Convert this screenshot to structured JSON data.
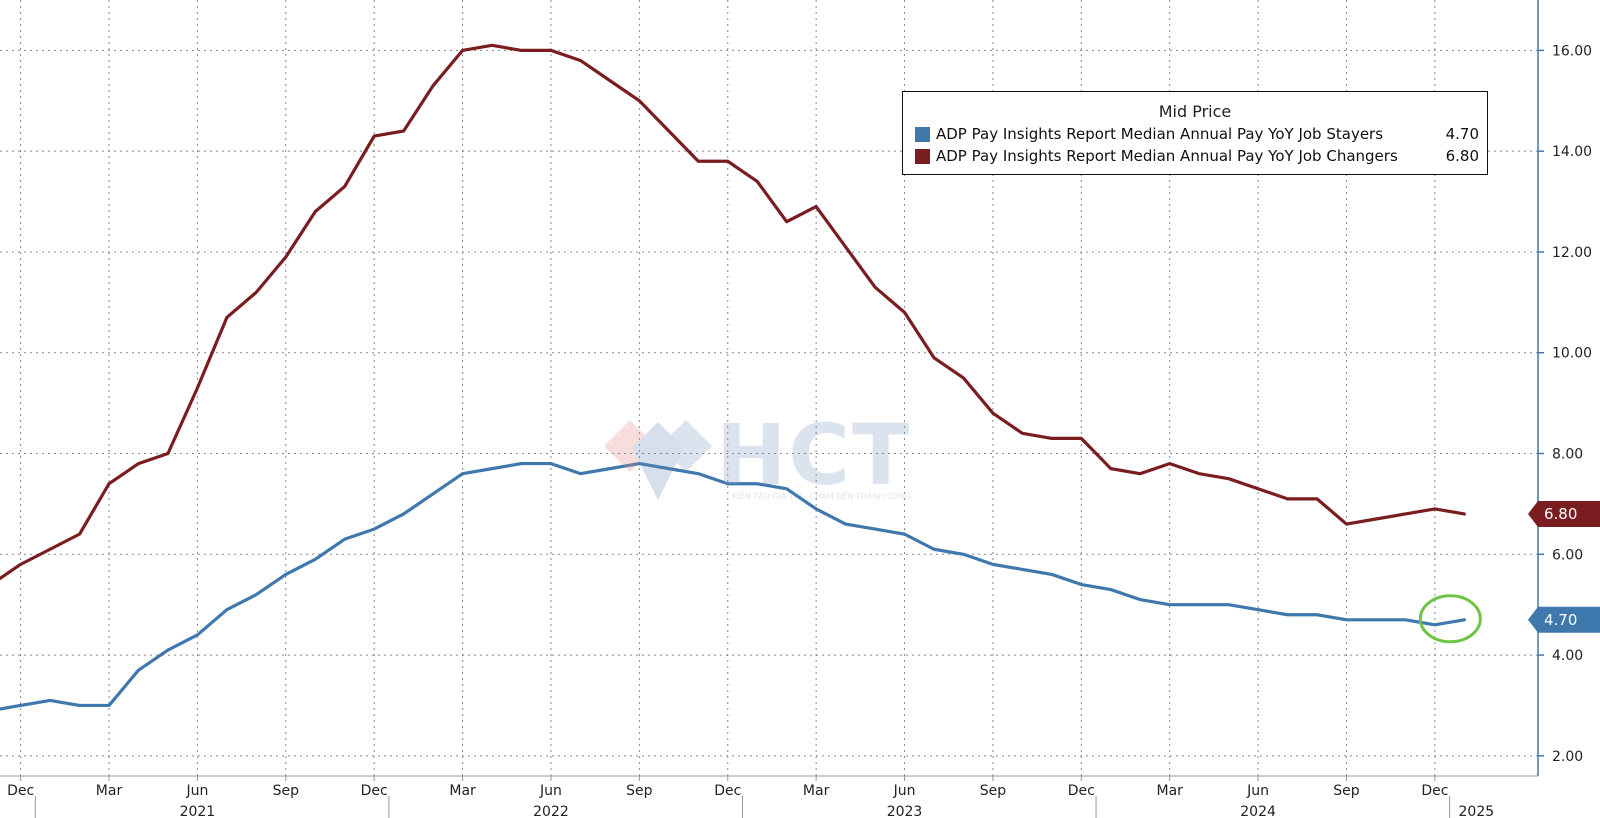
{
  "chart_data": {
    "type": "line",
    "legend_title": "Mid Price",
    "legend_position": "top-right",
    "grid": true,
    "y_axis": {
      "position": "right",
      "ylim": [
        1.6,
        17.0
      ],
      "ticks": [
        "2.00",
        "4.00",
        "6.00",
        "8.00",
        "10.00",
        "12.00",
        "14.00",
        "16.00"
      ],
      "tick_values": [
        2,
        4,
        6,
        8,
        10,
        12,
        14,
        16
      ]
    },
    "x_axis": {
      "xlim": [
        "2020-11",
        "2025-03"
      ],
      "month_labels": [
        {
          "date": "2020-12",
          "label": "Dec"
        },
        {
          "date": "2021-03",
          "label": "Mar"
        },
        {
          "date": "2021-06",
          "label": "Jun"
        },
        {
          "date": "2021-09",
          "label": "Sep"
        },
        {
          "date": "2021-12",
          "label": "Dec"
        },
        {
          "date": "2022-03",
          "label": "Mar"
        },
        {
          "date": "2022-06",
          "label": "Jun"
        },
        {
          "date": "2022-09",
          "label": "Sep"
        },
        {
          "date": "2022-12",
          "label": "Dec"
        },
        {
          "date": "2023-03",
          "label": "Mar"
        },
        {
          "date": "2023-06",
          "label": "Jun"
        },
        {
          "date": "2023-09",
          "label": "Sep"
        },
        {
          "date": "2023-12",
          "label": "Dec"
        },
        {
          "date": "2024-03",
          "label": "Mar"
        },
        {
          "date": "2024-06",
          "label": "Jun"
        },
        {
          "date": "2024-09",
          "label": "Sep"
        },
        {
          "date": "2024-12",
          "label": "Dec"
        }
      ],
      "year_labels": [
        {
          "date": "2021-06",
          "label": "2021"
        },
        {
          "date": "2022-06",
          "label": "2022"
        },
        {
          "date": "2023-06",
          "label": "2023"
        },
        {
          "date": "2024-06",
          "label": "2024"
        },
        {
          "date": "2025-01",
          "label": "2025"
        }
      ],
      "year_boundaries": [
        "2021-01",
        "2022-01",
        "2023-01",
        "2024-01",
        "2025-01"
      ]
    },
    "x": [
      "2020-11",
      "2020-12",
      "2021-01",
      "2021-02",
      "2021-03",
      "2021-04",
      "2021-05",
      "2021-06",
      "2021-07",
      "2021-08",
      "2021-09",
      "2021-10",
      "2021-11",
      "2021-12",
      "2022-01",
      "2022-02",
      "2022-03",
      "2022-04",
      "2022-05",
      "2022-06",
      "2022-07",
      "2022-08",
      "2022-09",
      "2022-10",
      "2022-11",
      "2022-12",
      "2023-01",
      "2023-02",
      "2023-03",
      "2023-04",
      "2023-05",
      "2023-06",
      "2023-07",
      "2023-08",
      "2023-09",
      "2023-10",
      "2023-11",
      "2023-12",
      "2024-01",
      "2024-02",
      "2024-03",
      "2024-04",
      "2024-05",
      "2024-06",
      "2024-07",
      "2024-08",
      "2024-09",
      "2024-10",
      "2024-11",
      "2024-12",
      "2025-01"
    ],
    "series": [
      {
        "name": "ADP Pay Insights Report Median Annual Pay YoY Job Stayers",
        "color": "#3e78ad",
        "last_value": "4.70",
        "values": [
          2.9,
          3.0,
          3.1,
          3.0,
          3.0,
          3.7,
          4.1,
          4.4,
          4.9,
          5.2,
          5.6,
          5.9,
          6.3,
          6.5,
          6.8,
          7.2,
          7.6,
          7.7,
          7.8,
          7.8,
          7.6,
          7.7,
          7.8,
          7.7,
          7.6,
          7.4,
          7.4,
          7.3,
          6.9,
          6.6,
          6.5,
          6.4,
          6.1,
          6.0,
          5.8,
          5.7,
          5.6,
          5.4,
          5.3,
          5.1,
          5.0,
          5.0,
          5.0,
          4.9,
          4.8,
          4.8,
          4.7,
          4.7,
          4.7,
          4.6,
          4.7
        ]
      },
      {
        "name": "ADP Pay Insights Report Median Annual Pay YoY Job Changers",
        "color": "#7a1d20",
        "last_value": "6.80",
        "values": [
          5.4,
          5.8,
          6.1,
          6.4,
          7.4,
          7.8,
          8.0,
          9.3,
          10.7,
          11.2,
          11.9,
          12.8,
          13.3,
          14.3,
          14.4,
          15.3,
          16.0,
          16.1,
          16.0,
          16.0,
          15.8,
          15.4,
          15.0,
          14.4,
          13.8,
          13.8,
          13.4,
          12.6,
          12.9,
          12.1,
          11.3,
          10.8,
          9.9,
          9.5,
          8.8,
          8.4,
          8.3,
          8.3,
          7.7,
          7.6,
          7.8,
          7.6,
          7.5,
          7.3,
          7.1,
          7.1,
          6.6,
          6.7,
          6.8,
          6.9,
          6.8
        ]
      }
    ],
    "annotation": {
      "type": "circle",
      "target": "Job Stayers last point",
      "color": "#6ec544"
    }
  },
  "watermark": {
    "text": "HCT",
    "tagline": "KIẾN TẠO GIÁ TRỊ - CHẠM ĐẾN THÀNH CÔNG"
  }
}
